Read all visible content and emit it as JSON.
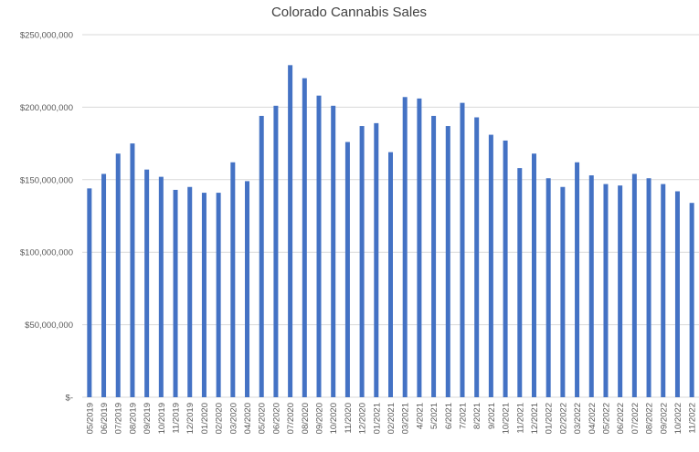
{
  "chart_data": {
    "type": "bar",
    "title": "Colorado Cannabis Sales",
    "xlabel": "",
    "ylabel": "",
    "ylim": [
      0,
      250000000
    ],
    "yticks": [
      0,
      50000000,
      100000000,
      150000000,
      200000000,
      250000000
    ],
    "ytick_labels": [
      "$-",
      "$50,000,000",
      "$100,000,000",
      "$150,000,000",
      "$200,000,000",
      "$250,000,000"
    ],
    "grid": true,
    "legend": "none",
    "bar_color": "#4472c4",
    "categories": [
      "05/2019",
      "06/2019",
      "07/2019",
      "08/2019",
      "09/2019",
      "10/2019",
      "11/2019",
      "12/2019",
      "01/2020",
      "02/2020",
      "03/2020",
      "04/2020",
      "05/2020",
      "06/2020",
      "07/2020",
      "08/2020",
      "09/2020",
      "10/2020",
      "11/2020",
      "12/2020",
      "01/2021",
      "02/2021",
      "03/2021",
      "4/2021",
      "5/2021",
      "6/2021",
      "7/2021",
      "8/2021",
      "9/2021",
      "10/2021",
      "11/2021",
      "12/2021",
      "01/2022",
      "02/2022",
      "03/2022",
      "04/2022",
      "05/2022",
      "06/2022",
      "07/2022",
      "08/2022",
      "09/2022",
      "10/2022",
      "11/2022"
    ],
    "values": [
      144000000,
      154000000,
      168000000,
      175000000,
      157000000,
      152000000,
      143000000,
      145000000,
      141000000,
      141000000,
      162000000,
      149000000,
      194000000,
      201000000,
      229000000,
      220000000,
      208000000,
      201000000,
      176000000,
      187000000,
      189000000,
      169000000,
      207000000,
      206000000,
      194000000,
      187000000,
      203000000,
      193000000,
      181000000,
      177000000,
      158000000,
      168000000,
      151000000,
      145000000,
      162000000,
      153000000,
      147000000,
      146000000,
      154000000,
      151000000,
      147000000,
      142000000,
      134000000
    ]
  }
}
